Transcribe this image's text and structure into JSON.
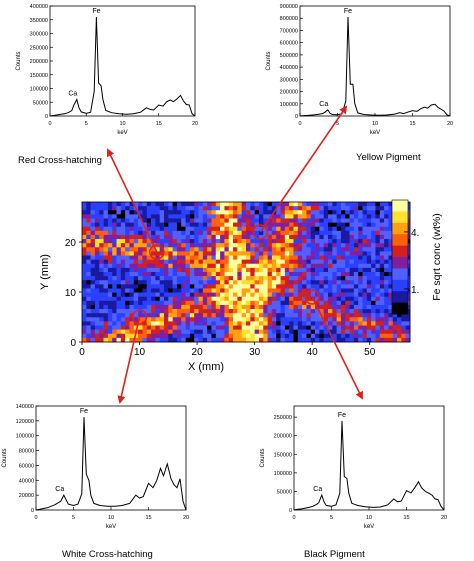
{
  "spectra": [
    {
      "id": "red",
      "caption": "Red Cross-hatching",
      "chart_data": {
        "type": "line",
        "xlabel": "keV",
        "ylabel": "Counts",
        "xlim": [
          0,
          20
        ],
        "ylim": [
          0,
          400000
        ],
        "xticks": [
          0,
          5,
          10,
          15,
          20
        ],
        "yticks": [
          0,
          50000,
          100000,
          150000,
          200000,
          250000,
          300000,
          350000,
          400000
        ],
        "peak_labels": [
          {
            "text": "Fe",
            "x": 6.4
          },
          {
            "text": "Ca",
            "x": 3.7
          }
        ],
        "series": [
          {
            "x": [
              0,
              0.5,
              1,
              1.5,
              2,
              2.5,
              3,
              3.3,
              3.7,
              4,
              4.3,
              5,
              5.6,
              6.1,
              6.4,
              6.7,
              7.05,
              7.3,
              7.7,
              8.5,
              9.5,
              10.5,
              11.5,
              12.5,
              13.3,
              13.8,
              14.3,
              15,
              15.6,
              16.1,
              16.6,
              17,
              17.5,
              18,
              18.4,
              18.8,
              19.2,
              19.6,
              20
            ],
            "y": [
              0,
              2000,
              4000,
              6000,
              8000,
              12000,
              20000,
              40000,
              60000,
              30000,
              15000,
              10000,
              14000,
              90000,
              360000,
              120000,
              110000,
              60000,
              20000,
              12000,
              8000,
              6000,
              8000,
              14000,
              30000,
              24000,
              22000,
              40000,
              36000,
              52000,
              58000,
              52000,
              62000,
              75000,
              55000,
              42000,
              40000,
              8000,
              0
            ]
          }
        ]
      }
    },
    {
      "id": "yellow",
      "caption": "Yellow Pigment",
      "chart_data": {
        "type": "line",
        "xlabel": "keV",
        "ylabel": "Counts",
        "xlim": [
          0,
          20
        ],
        "ylim": [
          0,
          900000
        ],
        "xticks": [
          0,
          5,
          10,
          15,
          20
        ],
        "yticks": [
          0,
          100000,
          200000,
          300000,
          400000,
          500000,
          600000,
          700000,
          800000,
          900000
        ],
        "peak_labels": [
          {
            "text": "Fe",
            "x": 6.4
          },
          {
            "text": "Ca",
            "x": 3.7
          }
        ],
        "series": [
          {
            "x": [
              0,
              0.5,
              1,
              1.5,
              2,
              2.5,
              3,
              3.3,
              3.7,
              4,
              4.3,
              5,
              5.6,
              6.1,
              6.4,
              6.7,
              7.05,
              7.3,
              7.7,
              8.5,
              9.5,
              10.5,
              11.5,
              12.5,
              13.3,
              13.8,
              14.3,
              15,
              15.6,
              16.1,
              16.6,
              17,
              17.5,
              18,
              18.4,
              18.8,
              19.2,
              19.6,
              20
            ],
            "y": [
              0,
              3000,
              5000,
              7000,
              10000,
              14000,
              20000,
              30000,
              50000,
              22000,
              12000,
              10000,
              20000,
              120000,
              810000,
              260000,
              260000,
              100000,
              25000,
              12000,
              8000,
              6000,
              8000,
              14000,
              28000,
              20000,
              30000,
              44000,
              38000,
              60000,
              72000,
              64000,
              90000,
              96000,
              70000,
              56000,
              40000,
              10000,
              0
            ]
          }
        ]
      }
    },
    {
      "id": "white",
      "caption": "White Cross-hatching",
      "chart_data": {
        "type": "line",
        "xlabel": "keV",
        "ylabel": "Counts",
        "xlim": [
          0,
          20
        ],
        "ylim": [
          0,
          140000
        ],
        "xticks": [
          0,
          5,
          10,
          15,
          20
        ],
        "yticks": [
          0,
          20000,
          40000,
          60000,
          80000,
          100000,
          120000,
          140000
        ],
        "peak_labels": [
          {
            "text": "Fe",
            "x": 6.4
          },
          {
            "text": "Ca",
            "x": 3.7
          }
        ],
        "series": [
          {
            "x": [
              0,
              0.5,
              1,
              1.5,
              2,
              2.5,
              3,
              3.3,
              3.7,
              4,
              4.3,
              5,
              5.6,
              6.1,
              6.4,
              6.7,
              7.05,
              7.3,
              7.7,
              8.5,
              9.5,
              10.5,
              11.5,
              12.5,
              13.3,
              13.8,
              14.3,
              15,
              15.6,
              16.1,
              16.6,
              17,
              17.5,
              18,
              18.4,
              18.8,
              19.2,
              19.6,
              20
            ],
            "y": [
              0,
              1000,
              2000,
              3000,
              5000,
              7000,
              10000,
              12000,
              20000,
              14000,
              8000,
              6000,
              8000,
              22000,
              125000,
              48000,
              40000,
              20000,
              9000,
              6000,
              5000,
              5000,
              6000,
              9000,
              20000,
              16000,
              18000,
              36000,
              30000,
              40000,
              56000,
              46000,
              62000,
              42000,
              34000,
              30000,
              42000,
              12000,
              0
            ]
          }
        ]
      }
    },
    {
      "id": "black",
      "caption": "Black Pigment",
      "chart_data": {
        "type": "line",
        "xlabel": "keV",
        "ylabel": "Counts",
        "xlim": [
          0,
          20
        ],
        "ylim": [
          0,
          280000
        ],
        "xticks": [
          0,
          5,
          10,
          15,
          20
        ],
        "yticks": [
          0,
          50000,
          100000,
          150000,
          200000,
          250000
        ],
        "peak_labels": [
          {
            "text": "Fe",
            "x": 6.4
          },
          {
            "text": "Ca",
            "x": 3.7
          }
        ],
        "series": [
          {
            "x": [
              0,
              0.5,
              1,
              1.5,
              2,
              2.5,
              3,
              3.3,
              3.7,
              4,
              4.3,
              5,
              5.6,
              6.1,
              6.4,
              6.7,
              7.05,
              7.3,
              7.7,
              8.5,
              9.5,
              10.5,
              11.5,
              12.5,
              13.3,
              13.8,
              14.3,
              15,
              15.6,
              16.1,
              16.6,
              17,
              17.5,
              18,
              18.4,
              18.8,
              19.2,
              19.6,
              20
            ],
            "y": [
              0,
              2000,
              3000,
              5000,
              7000,
              10000,
              15000,
              20000,
              40000,
              22000,
              12000,
              10000,
              14000,
              45000,
              240000,
              90000,
              85000,
              45000,
              18000,
              12000,
              9000,
              7000,
              8000,
              14000,
              30000,
              22000,
              24000,
              52000,
              46000,
              60000,
              76000,
              60000,
              50000,
              45000,
              40000,
              30000,
              28000,
              10000,
              0
            ]
          }
        ]
      }
    }
  ],
  "map": {
    "chart_data": {
      "type": "heatmap",
      "xlabel": "X (mm)",
      "ylabel": "Y (mm)",
      "xlim": [
        0,
        57
      ],
      "ylim": [
        0,
        28
      ],
      "xticks": [
        0,
        10,
        20,
        30,
        40,
        50
      ],
      "yticks": [
        0,
        10,
        20
      ],
      "colorbar_label": "Fe sqrt conc (wt%)",
      "colorbar_ticks": [
        "4.",
        "1."
      ],
      "colormap": [
        "#000000",
        "#1a1aa0",
        "#2a40ff",
        "#5060ff",
        "#8020a0",
        "#d02020",
        "#ff6010",
        "#ffa010",
        "#ffe030",
        "#ffffa0"
      ]
    },
    "circles": [
      {
        "id": "red",
        "x": 13,
        "y": 18
      },
      {
        "id": "yellow",
        "x": 31,
        "y": 22
      },
      {
        "id": "white",
        "x": 10,
        "y": 5
      },
      {
        "id": "black",
        "x": 40,
        "y": 9
      }
    ]
  },
  "colors": {
    "arrow": "#e0201a",
    "circle": "#e0201a",
    "line": "#000000"
  }
}
